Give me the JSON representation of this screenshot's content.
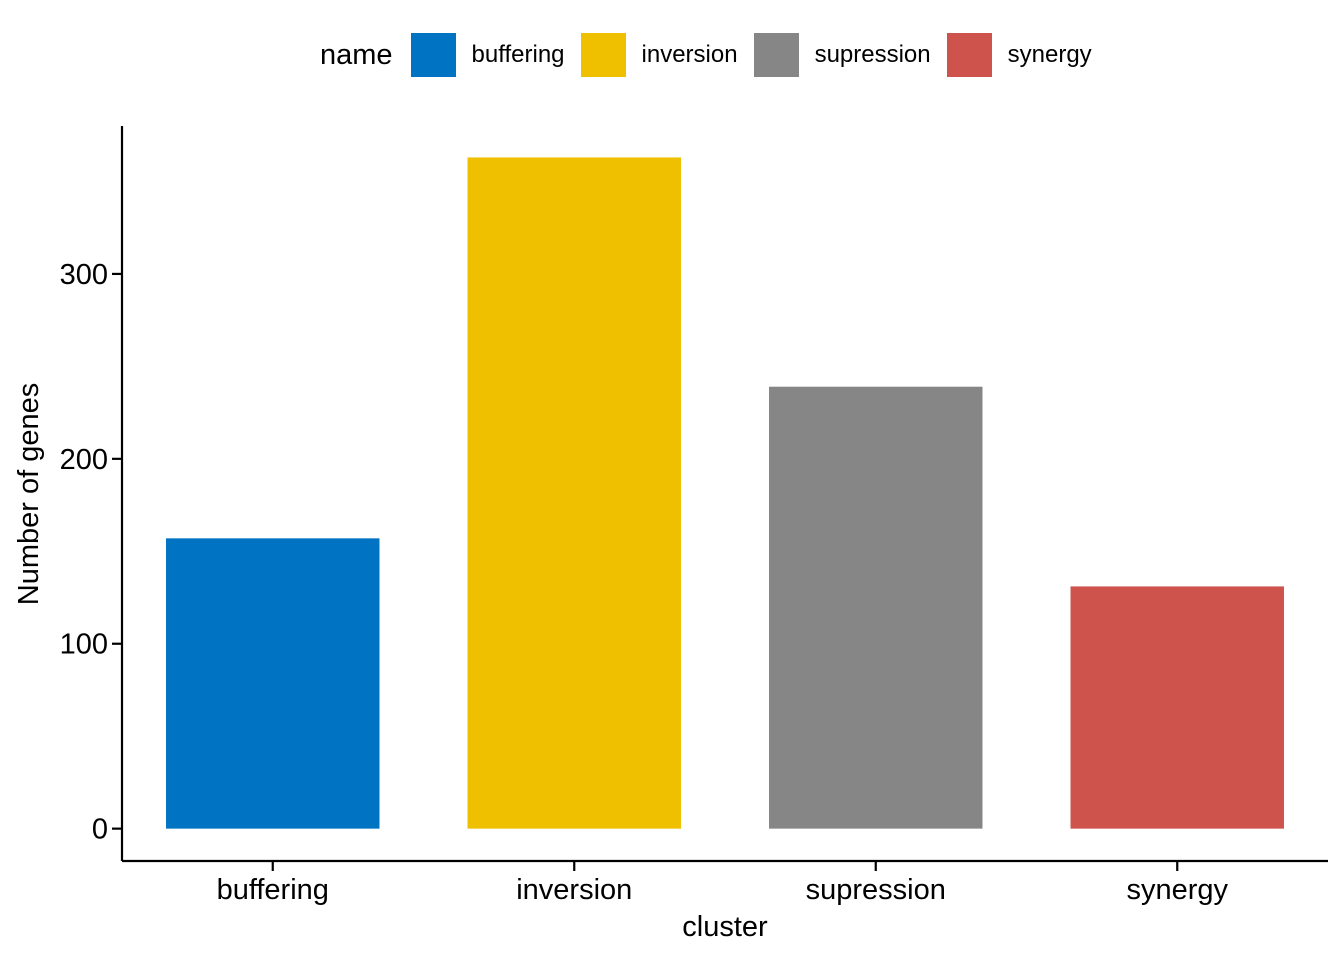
{
  "legend": {
    "title": "name",
    "items": [
      {
        "label": "buffering",
        "color": "#0073C2"
      },
      {
        "label": "inversion",
        "color": "#EFC000"
      },
      {
        "label": "supression",
        "color": "#868686"
      },
      {
        "label": "synergy",
        "color": "#CD534C"
      }
    ]
  },
  "chart_data": {
    "type": "bar",
    "categories": [
      "buffering",
      "inversion",
      "supression",
      "synergy"
    ],
    "values": [
      157,
      363,
      239,
      131
    ],
    "colors": [
      "#0073C2",
      "#EFC000",
      "#868686",
      "#CD534C"
    ],
    "xlabel": "cluster",
    "ylabel": "Number of genes",
    "yticks": [
      0,
      100,
      200,
      300
    ],
    "ylim": [
      -17.5,
      380
    ],
    "grid": false,
    "legend_position": "top"
  }
}
